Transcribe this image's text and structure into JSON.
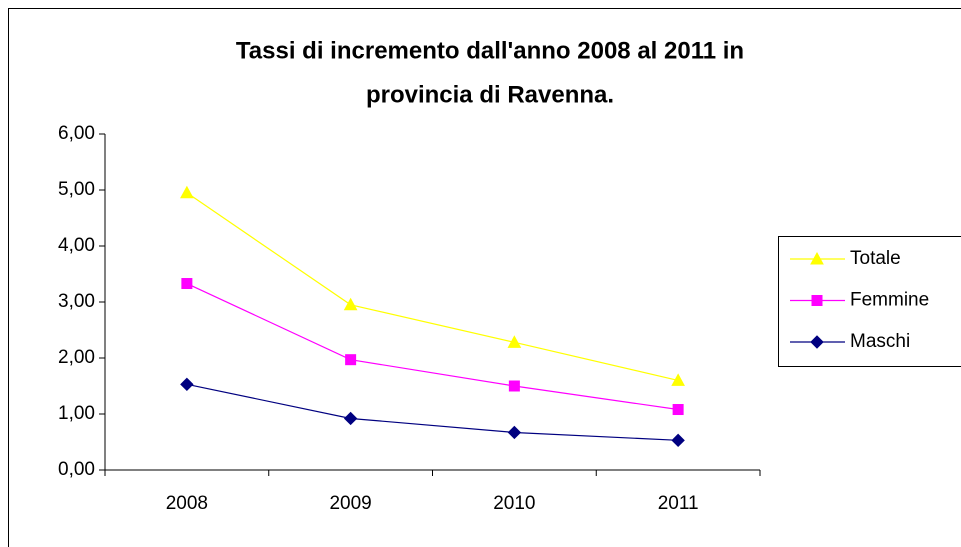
{
  "chart_data": {
    "type": "line",
    "title": [
      "Tassi di incremento dall'anno 2008 al 2011 in",
      "provincia di Ravenna."
    ],
    "categories": [
      "2008",
      "2009",
      "2010",
      "2011"
    ],
    "series": [
      {
        "name": "Totale",
        "color": "#ffff00",
        "marker": "triangle",
        "values": [
          4.95,
          2.95,
          2.28,
          1.6
        ]
      },
      {
        "name": "Femmine",
        "color": "#ff00ff",
        "marker": "square",
        "values": [
          3.33,
          1.97,
          1.5,
          1.08
        ]
      },
      {
        "name": "Maschi",
        "color": "#000080",
        "marker": "diamond",
        "values": [
          1.53,
          0.92,
          0.67,
          0.53
        ]
      }
    ],
    "ylim": [
      0,
      6
    ],
    "yticks": [
      {
        "value": 0,
        "label": "0,00"
      },
      {
        "value": 1,
        "label": "1,00"
      },
      {
        "value": 2,
        "label": "2,00"
      },
      {
        "value": 3,
        "label": "3,00"
      },
      {
        "value": 4,
        "label": "4,00"
      },
      {
        "value": 5,
        "label": "5,00"
      },
      {
        "value": 6,
        "label": "6,00"
      }
    ],
    "grid": false,
    "legend": "right"
  }
}
